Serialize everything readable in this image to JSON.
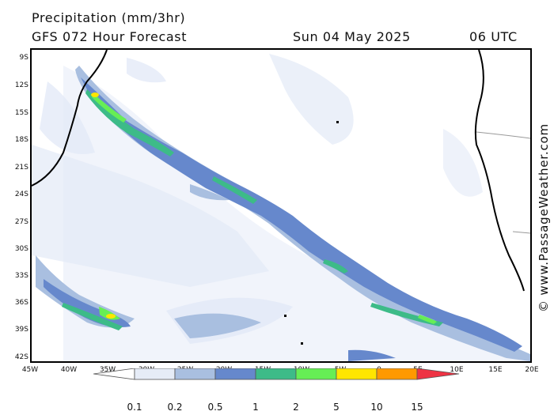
{
  "title": {
    "line1": "Precipitation (mm/3hr)",
    "line2": "GFS 072 Hour Forecast",
    "date": "Sun 04 May 2025",
    "time": "06 UTC"
  },
  "watermark": "© www.PassageWeather.com",
  "axes": {
    "lat_labels": [
      "9S",
      "12S",
      "15S",
      "18S",
      "21S",
      "24S",
      "27S",
      "30S",
      "33S",
      "36S",
      "39S",
      "42S"
    ],
    "lon_labels": [
      "45W",
      "40W",
      "35W",
      "30W",
      "25W",
      "20W",
      "15W",
      "10W",
      "5W",
      "0",
      "5E",
      "10E",
      "15E",
      "20E"
    ]
  },
  "legend": {
    "labels": [
      "0.1",
      "0.2",
      "0.5",
      "1",
      "2",
      "5",
      "10",
      "15"
    ],
    "colors": [
      "#ffffff",
      "#e6ecf7",
      "#a9bfe0",
      "#6688cc",
      "#3dbb88",
      "#66ee55",
      "#ffe600",
      "#ff9900",
      "#ee3344"
    ]
  },
  "colors": {
    "land": "#ffffff",
    "coast": "#000000",
    "border": "#999999"
  }
}
